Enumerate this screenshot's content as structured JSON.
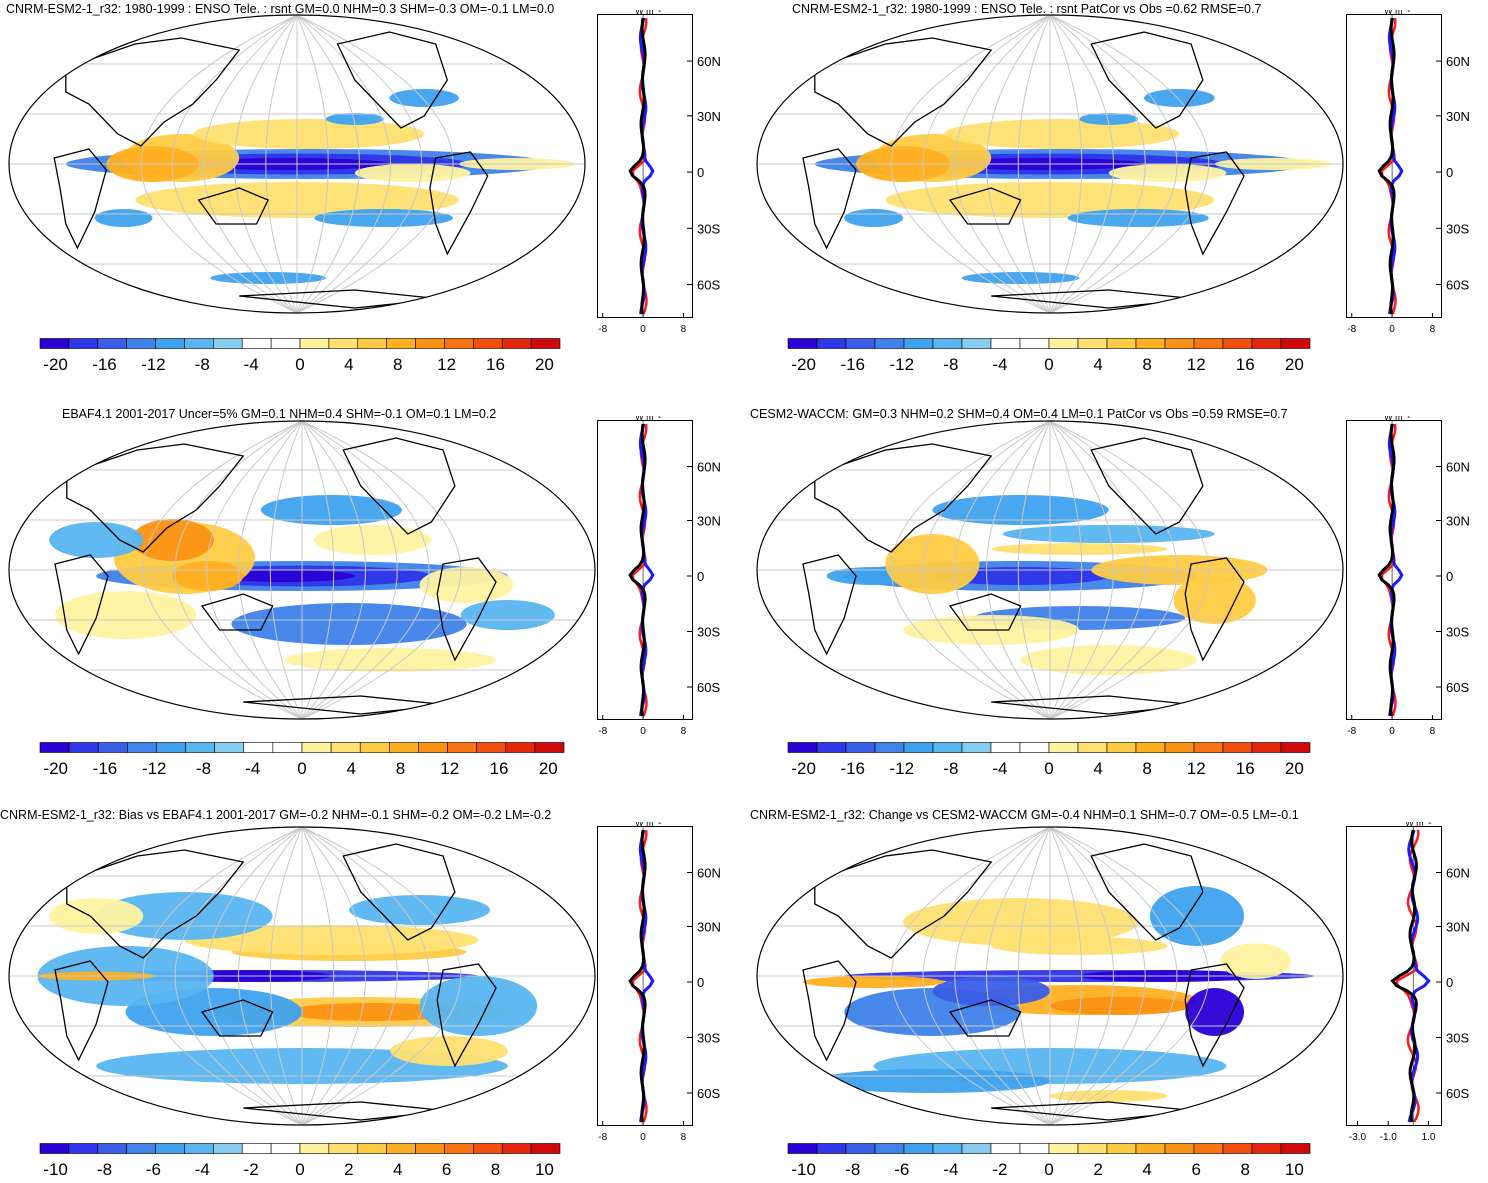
{
  "panels": [
    {
      "title": "CNRM-ESM2-1_r32: 1980-1999 : ENSO Tele. : rsnt GM=0.0 NHM=0.3 SHM=-0.3 OM=-0.1 LM=0.0",
      "colorbar_labels": [
        "-20",
        "-16",
        "-12",
        "-8",
        "-4",
        "0",
        "4",
        "8",
        "12",
        "16",
        "20"
      ],
      "profile_unit": "W m⁻²",
      "profile_xticks": [
        "-8",
        "0",
        "8"
      ],
      "profile_yticks": [
        "60N",
        "30N",
        "0",
        "30S",
        "60S"
      ],
      "pattern": "model"
    },
    {
      "title": "CNRM-ESM2-1_r32: 1980-1999 : ENSO Tele. : rsnt PatCor vs Obs =0.62 RMSE=0.7",
      "colorbar_labels": [
        "-20",
        "-16",
        "-12",
        "-8",
        "-4",
        "0",
        "4",
        "8",
        "12",
        "16",
        "20"
      ],
      "profile_unit": "W m⁻²",
      "profile_xticks": [
        "-8",
        "0",
        "8"
      ],
      "profile_yticks": [
        "60N",
        "30N",
        "0",
        "30S",
        "60S"
      ],
      "pattern": "model"
    },
    {
      "title": "EBAF4.1 2001-2017 Uncer=5% GM=0.1 NHM=0.4 SHM=-0.1 OM=0.1 LM=0.2",
      "colorbar_labels": [
        "-20",
        "-16",
        "-12",
        "-8",
        "-4",
        "0",
        "4",
        "8",
        "12",
        "16",
        "20"
      ],
      "profile_unit": "W m⁻²",
      "profile_xticks": [
        "-8",
        "0",
        "8"
      ],
      "profile_yticks": [
        "60N",
        "30N",
        "0",
        "30S",
        "60S"
      ],
      "pattern": "obs"
    },
    {
      "title": "CESM2-WACCM: GM=0.3 NHM=0.2 SHM=0.4 OM=0.4 LM=0.1 PatCor vs Obs =0.59 RMSE=0.7",
      "colorbar_labels": [
        "-20",
        "-16",
        "-12",
        "-8",
        "-4",
        "0",
        "4",
        "8",
        "12",
        "16",
        "20"
      ],
      "profile_unit": "W m⁻²",
      "profile_xticks": [
        "-8",
        "0",
        "8"
      ],
      "profile_yticks": [
        "60N",
        "30N",
        "0",
        "30S",
        "60S"
      ],
      "pattern": "cesm"
    },
    {
      "title": "CNRM-ESM2-1_r32: Bias vs EBAF4.1 2001-2017 GM=-0.2 NHM=-0.1 SHM=-0.2 OM=-0.2 LM=-0.2",
      "colorbar_labels": [
        "-10",
        "-8",
        "-6",
        "-4",
        "-2",
        "0",
        "2",
        "4",
        "6",
        "8",
        "10"
      ],
      "profile_unit": "W m⁻²",
      "profile_xticks": [
        "-8",
        "0",
        "8"
      ],
      "profile_yticks": [
        "60N",
        "30N",
        "0",
        "30S",
        "60S"
      ],
      "pattern": "bias"
    },
    {
      "title": "CNRM-ESM2-1_r32: Change vs CESM2-WACCM GM=-0.4 NHM=0.1 SHM=-0.7 OM=-0.5 LM=-0.1",
      "colorbar_labels": [
        "-10",
        "-8",
        "-6",
        "-4",
        "-2",
        "0",
        "2",
        "4",
        "6",
        "8",
        "10"
      ],
      "profile_unit": "W m⁻²",
      "profile_xticks": [
        "-3.0",
        "-1.0",
        "1.0"
      ],
      "profile_yticks": [
        "60N",
        "30N",
        "0",
        "30S",
        "60S"
      ],
      "pattern": "change"
    }
  ],
  "colormap": [
    "#2a00d6",
    "#2f35e8",
    "#3a5ee8",
    "#3f82ea",
    "#3ea2ee",
    "#57b5f0",
    "#86cdef",
    "#ffffff",
    "#ffffff",
    "#fff3a0",
    "#ffe070",
    "#ffcb42",
    "#ffb020",
    "#fb9214",
    "#f77410",
    "#f0500c",
    "#e6260a",
    "#d00808"
  ],
  "line_colors": {
    "black": "#000000",
    "red": "#ff1a1a",
    "blue": "#1a1aff"
  }
}
